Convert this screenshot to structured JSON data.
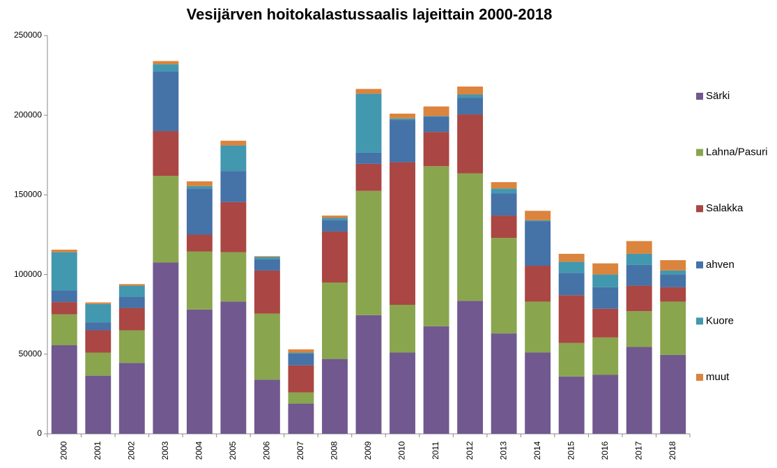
{
  "chart_data": {
    "type": "stacked_bar",
    "title": "Vesijärven hoitokalastussaalis lajeittain 2000-2018",
    "categories": [
      "2000",
      "2001",
      "2002",
      "2003",
      "2004",
      "2005",
      "2006",
      "2007",
      "2008",
      "2009",
      "2010",
      "2011",
      "2012",
      "2013",
      "2014",
      "2015",
      "2016",
      "2017",
      "2018"
    ],
    "series": [
      {
        "name": "Särki",
        "color": "#71588f",
        "values": [
          55600,
          36500,
          44500,
          107500,
          78000,
          83000,
          34000,
          19000,
          47000,
          74500,
          51000,
          67500,
          83500,
          63000,
          51000,
          36000,
          37000,
          54500,
          49500
        ]
      },
      {
        "name": "Lahna/Pasuri",
        "color": "#89a54e",
        "values": [
          19400,
          14500,
          20500,
          54500,
          36500,
          31000,
          41500,
          7000,
          48000,
          78000,
          30000,
          100500,
          80000,
          60000,
          32000,
          21000,
          23500,
          22500,
          33500
        ]
      },
      {
        "name": "Salakka",
        "color": "#aa4643",
        "values": [
          7700,
          14000,
          14000,
          28000,
          10500,
          31500,
          27000,
          17000,
          32000,
          17000,
          89500,
          21500,
          37000,
          14000,
          22500,
          30000,
          18000,
          16000,
          9000
        ]
      },
      {
        "name": "ahven",
        "color": "#4572a7",
        "values": [
          7300,
          5000,
          7000,
          37500,
          29000,
          19500,
          7000,
          7500,
          7000,
          7000,
          26500,
          9500,
          10500,
          14000,
          28000,
          14000,
          13500,
          13000,
          8000
        ]
      },
      {
        "name": "Kuore",
        "color": "#4198af",
        "values": [
          24000,
          11500,
          7000,
          4500,
          1500,
          16000,
          1500,
          500,
          1500,
          37000,
          1000,
          500,
          2000,
          3000,
          500,
          7000,
          8000,
          7000,
          2500
        ]
      },
      {
        "name": "muut",
        "color": "#db843d",
        "values": [
          1600,
          1000,
          1000,
          2000,
          3000,
          3000,
          500,
          2000,
          1500,
          3000,
          3000,
          6000,
          5000,
          4000,
          6000,
          5000,
          7000,
          8000,
          6500
        ]
      }
    ],
    "ylim": [
      0,
      250000
    ],
    "yticks": [
      0,
      50000,
      100000,
      150000,
      200000,
      250000
    ],
    "grid": false,
    "legend": "right"
  }
}
